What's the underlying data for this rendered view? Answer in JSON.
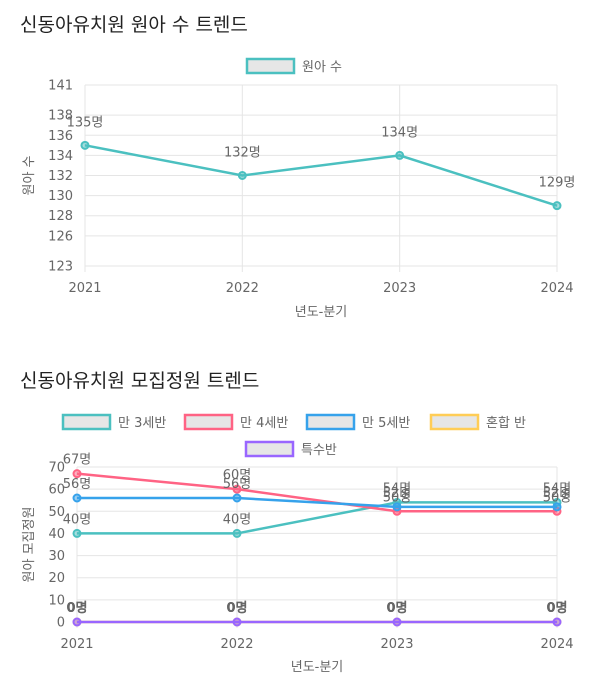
{
  "charts": [
    {
      "title": "신동아유치원 원아 수 트렌드"
    },
    {
      "title": "신동아유치원 모집정원 트렌드"
    }
  ],
  "chart_data": [
    {
      "type": "line",
      "title": "신동아유치원 원아 수 트렌드",
      "categories": [
        "2021",
        "2022",
        "2023",
        "2024"
      ],
      "series": [
        {
          "name": "원아 수",
          "values": [
            135,
            132,
            134,
            129
          ],
          "color": "#4bc0c0",
          "labels": [
            "135명",
            "132명",
            "134명",
            "129명"
          ]
        }
      ],
      "xlabel": "년도-분기",
      "ylabel": "원아 수",
      "yticks": [
        123,
        126,
        128,
        130,
        132,
        134,
        136,
        138,
        141
      ],
      "ylim": [
        123,
        141
      ],
      "grid": true,
      "legend": "top"
    },
    {
      "type": "line",
      "title": "신동아유치원 모집정원 트렌드",
      "categories": [
        "2021",
        "2022",
        "2023",
        "2024"
      ],
      "series": [
        {
          "name": "만 3세반",
          "values": [
            40,
            40,
            54,
            54
          ],
          "color": "#4bc0c0",
          "labels": [
            "40명",
            "40명",
            "54명",
            "54명"
          ]
        },
        {
          "name": "만 4세반",
          "values": [
            67,
            60,
            50,
            50
          ],
          "color": "#ff6384",
          "labels": [
            "67명",
            "60명",
            "50명",
            "50명"
          ]
        },
        {
          "name": "만 5세반",
          "values": [
            56,
            56,
            52,
            52
          ],
          "color": "#36a2eb",
          "labels": [
            "56명",
            "56명",
            "52명",
            "52명"
          ]
        },
        {
          "name": "혼합 반",
          "values": [
            0,
            0,
            0,
            0
          ],
          "color": "#ffcd56",
          "labels": [
            "0명",
            "0명",
            "0명",
            "0명"
          ]
        },
        {
          "name": "특수반",
          "values": [
            0,
            0,
            0,
            0
          ],
          "color": "#9966ff",
          "labels": [
            "0명",
            "0명",
            "0명",
            "0명"
          ]
        }
      ],
      "xlabel": "년도-분기",
      "ylabel": "원아 모집정원",
      "yticks": [
        0,
        10,
        20,
        30,
        40,
        50,
        60,
        70
      ],
      "ylim": [
        0,
        70
      ],
      "grid": true,
      "legend": "top"
    }
  ]
}
